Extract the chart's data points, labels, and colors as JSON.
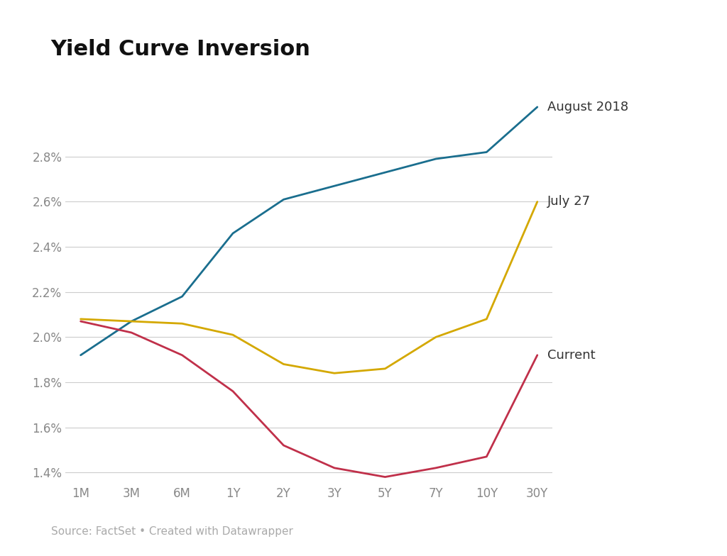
{
  "title": "Yield Curve Inversion",
  "source_text": "Source: FactSet • Created with Datawrapper",
  "x_labels": [
    "1M",
    "3M",
    "6M",
    "1Y",
    "2Y",
    "3Y",
    "5Y",
    "7Y",
    "10Y",
    "30Y"
  ],
  "series": [
    {
      "label": "August 2018",
      "color": "#1a6e8e",
      "values": [
        1.92,
        2.07,
        2.18,
        2.46,
        2.61,
        2.67,
        2.73,
        2.79,
        2.82,
        3.02
      ]
    },
    {
      "label": "July 27",
      "color": "#d4a800",
      "values": [
        2.08,
        2.07,
        2.06,
        2.01,
        1.88,
        1.84,
        1.86,
        2.0,
        2.08,
        2.6
      ]
    },
    {
      "label": "Current",
      "color": "#c0304a",
      "values": [
        2.07,
        2.02,
        1.92,
        1.76,
        1.52,
        1.42,
        1.38,
        1.42,
        1.47,
        1.92
      ]
    }
  ],
  "ylim": [
    1.35,
    3.1
  ],
  "yticks": [
    1.4,
    1.6,
    1.8,
    2.0,
    2.2,
    2.4,
    2.6,
    2.8
  ],
  "series_label_offsets": {
    "August 2018": 0.04,
    "July 27": 0.04,
    "Current": 0.04
  },
  "background_color": "#ffffff",
  "grid_color": "#cccccc",
  "title_fontsize": 22,
  "series_label_fontsize": 13,
  "tick_fontsize": 12,
  "source_fontsize": 11,
  "line_width": 2.0,
  "tick_color": "#aaaaaa",
  "label_text_color": "#333333"
}
